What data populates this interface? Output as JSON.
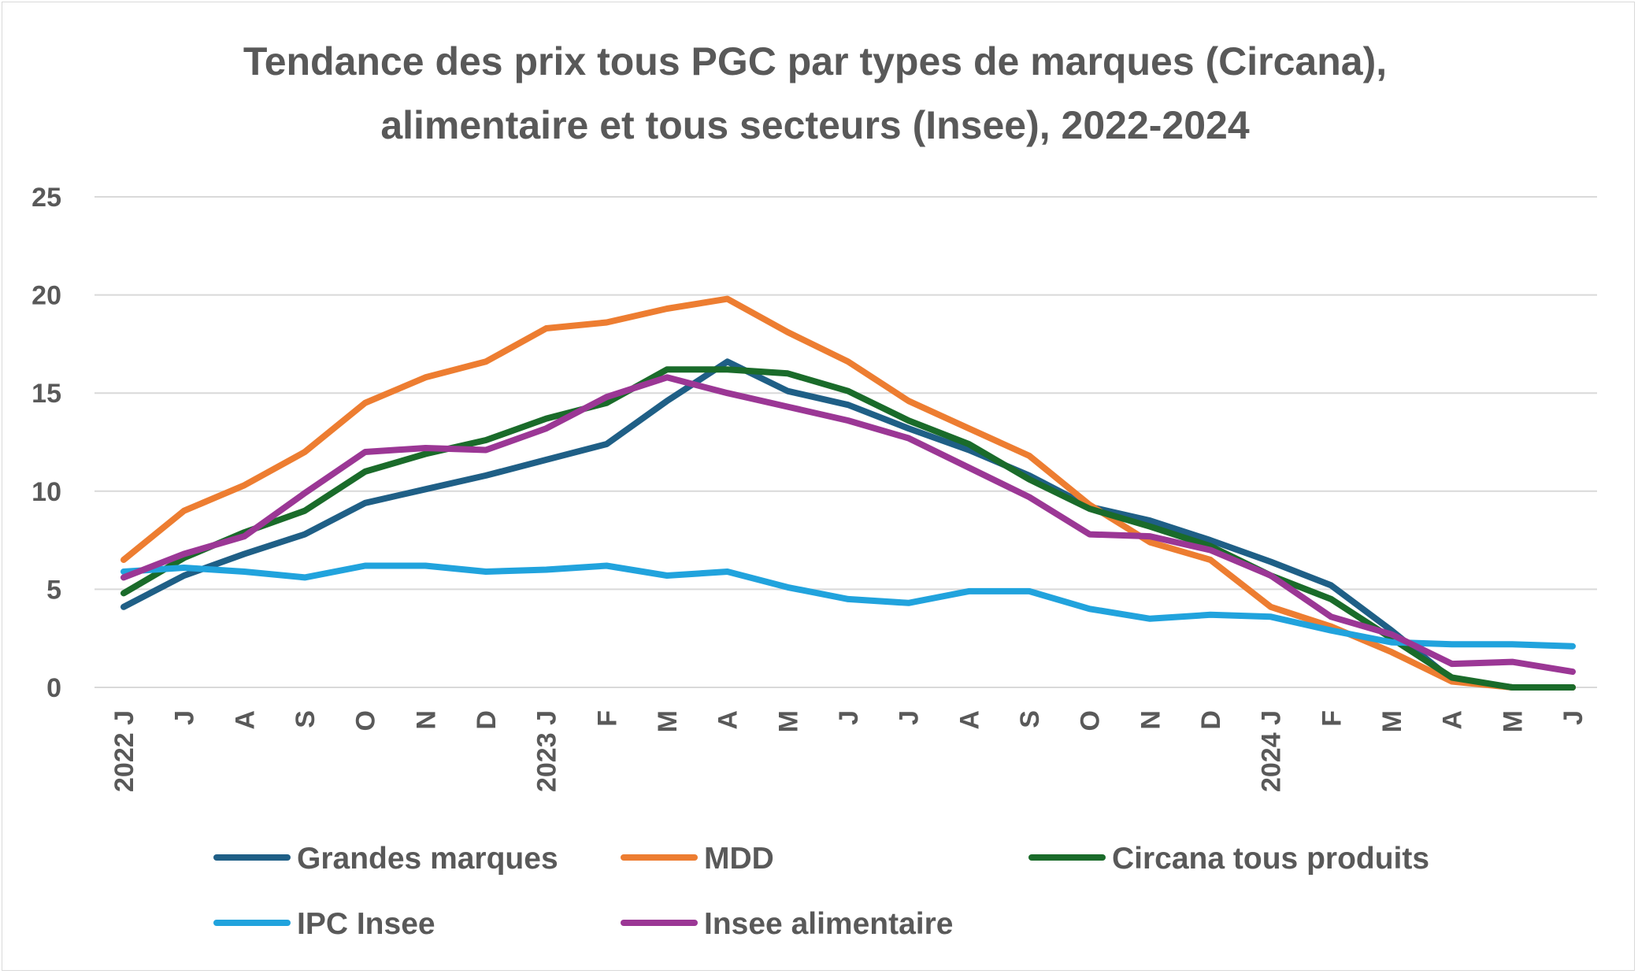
{
  "chart_data": {
    "type": "line",
    "title_lines": [
      "Tendance des prix tous PGC par types de marques (Circana),",
      "alimentaire et tous secteurs (Insee), 2022-2024"
    ],
    "xlabel": "",
    "ylabel": "",
    "ylim": [
      0,
      25
    ],
    "yticks": [
      "0",
      "5",
      "10",
      "15",
      "20",
      "25"
    ],
    "grid": true,
    "legend_position": "bottom",
    "categories": [
      "2022 J",
      "J",
      "A",
      "S",
      "O",
      "N",
      "D",
      "2023 J",
      "F",
      "M",
      "A",
      "M",
      "J",
      "J",
      "A",
      "S",
      "O",
      "N",
      "D",
      "2024 J",
      "F",
      "M",
      "A",
      "M",
      "J"
    ],
    "series": [
      {
        "name": "Grandes marques",
        "color": "#1f5f86",
        "values": [
          4.1,
          5.7,
          6.8,
          7.8,
          9.4,
          10.1,
          10.8,
          11.6,
          12.4,
          14.6,
          16.6,
          15.1,
          14.4,
          13.2,
          12.1,
          10.8,
          9.2,
          8.5,
          7.5,
          6.4,
          5.2,
          2.9,
          0.4,
          0,
          0
        ]
      },
      {
        "name": "MDD",
        "color": "#ed7d31",
        "values": [
          6.5,
          9.0,
          10.3,
          12.0,
          14.5,
          15.8,
          16.6,
          18.3,
          18.6,
          19.3,
          19.8,
          18.1,
          16.6,
          14.6,
          13.2,
          11.8,
          9.3,
          7.4,
          6.5,
          4.1,
          3.1,
          1.8,
          0.3,
          0,
          0
        ]
      },
      {
        "name": "Circana tous produits",
        "color": "#1a6b2a",
        "values": [
          4.8,
          6.6,
          7.9,
          9.0,
          11.0,
          11.9,
          12.6,
          13.7,
          14.5,
          16.2,
          16.2,
          16.0,
          15.1,
          13.6,
          12.4,
          10.6,
          9.1,
          8.2,
          7.2,
          5.7,
          4.5,
          2.5,
          0.5,
          0,
          0
        ]
      },
      {
        "name": "IPC Insee",
        "color": "#21a3dd",
        "values": [
          5.9,
          6.1,
          5.9,
          5.6,
          6.2,
          6.2,
          5.9,
          6.0,
          6.2,
          5.7,
          5.9,
          5.1,
          4.5,
          4.3,
          4.9,
          4.9,
          4.0,
          3.5,
          3.7,
          3.6,
          2.9,
          2.3,
          2.2,
          2.2,
          2.1
        ]
      },
      {
        "name": "Insee alimentaire",
        "color": "#9b3795",
        "values": [
          5.6,
          6.8,
          7.7,
          9.9,
          12.0,
          12.2,
          12.1,
          13.2,
          14.8,
          15.8,
          15.0,
          14.3,
          13.6,
          12.7,
          11.2,
          9.7,
          7.8,
          7.7,
          7.0,
          5.7,
          3.6,
          2.7,
          1.2,
          1.3,
          0.8
        ]
      }
    ]
  }
}
